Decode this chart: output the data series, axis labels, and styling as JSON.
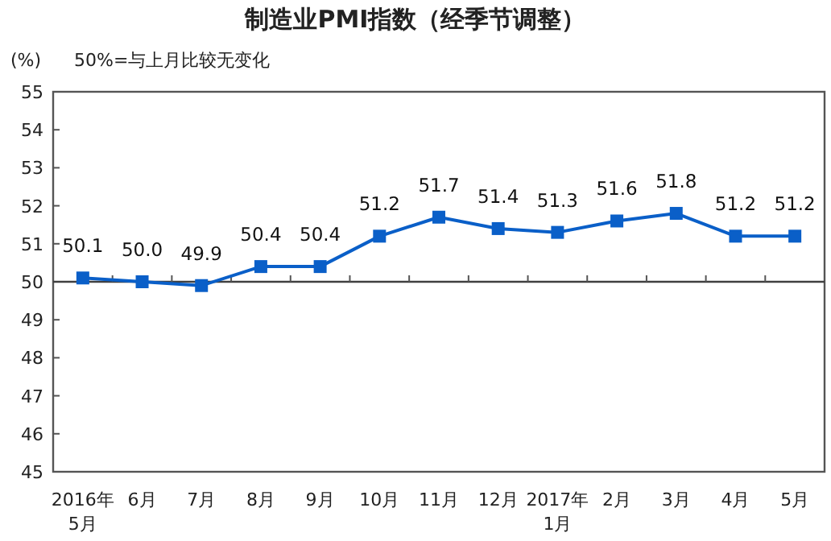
{
  "chart_data": {
    "type": "line",
    "title": "制造业PMI指数（经季节调整）",
    "ylabel": "(%)",
    "annotations": [
      "50%=与上月比较无变化"
    ],
    "categories": [
      "2016年\n5月",
      "6月",
      "7月",
      "8月",
      "9月",
      "10月",
      "11月",
      "12月",
      "2017年\n1月",
      "2月",
      "3月",
      "4月",
      "5月"
    ],
    "series": [
      {
        "color": "#0a5fc8",
        "values": [
          50.1,
          50.0,
          49.9,
          50.4,
          50.4,
          51.2,
          51.7,
          51.4,
          51.3,
          51.6,
          51.8,
          51.2,
          51.2
        ],
        "value_labels": [
          "50.1",
          "50.0",
          "49.9",
          "50.4",
          "50.4",
          "51.2",
          "51.7",
          "51.4",
          "51.3",
          "51.6",
          "51.8",
          "51.2",
          "51.2"
        ]
      }
    ],
    "ylim": [
      45,
      55
    ],
    "yticks": [
      45,
      46,
      47,
      48,
      49,
      50,
      51,
      52,
      53,
      54,
      55
    ],
    "ref_lines": [
      {
        "axis": "y",
        "value": 50,
        "color": "#404040"
      }
    ],
    "marker": "square",
    "line_style": "solid"
  }
}
